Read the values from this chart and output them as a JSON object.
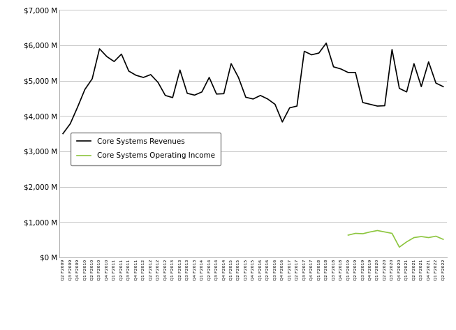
{
  "title": "",
  "xlabel": "",
  "ylabel": "",
  "ylim": [
    0,
    7000
  ],
  "yticks": [
    0,
    1000,
    2000,
    3000,
    4000,
    5000,
    6000,
    7000
  ],
  "ytick_labels": [
    "$0 M",
    "$1,000 M",
    "$2,000 M",
    "$3,000 M",
    "$4,000 M",
    "$5,000 M",
    "$6,000 M",
    "$7,000 M"
  ],
  "x_labels": [
    "Q2 F2009",
    "Q3 F2009",
    "Q4 F2009",
    "Q1 F2010",
    "Q2 F2010",
    "Q3 F2010",
    "Q4 F2010",
    "Q1 F2011",
    "Q2 F2011",
    "Q3 F2011",
    "Q4 F2011",
    "Q1 F2012",
    "Q2 F2012",
    "Q3 F2012",
    "Q4 F2012",
    "Q1 F2013",
    "Q2 F2013",
    "Q3 F2013",
    "Q4 F2013",
    "Q1 F2014",
    "Q2 F2014",
    "Q3 F2014",
    "Q4 F2014",
    "Q1 F2015",
    "Q2 F2015",
    "Q3 F2015",
    "Q4 F2015",
    "Q1 F2016",
    "Q2 F2016",
    "Q3 F2016",
    "Q4 F2016",
    "Q1 F2017",
    "Q2 F2017",
    "Q3 F2017",
    "Q4 F2017",
    "Q1 F2018",
    "Q2 F2018",
    "Q3 F2018",
    "Q4 F2018",
    "Q1 F2019",
    "Q2 F2019",
    "Q3 F2019",
    "Q4 F2019",
    "Q1 F2020",
    "Q2 F2020",
    "Q3 F2020",
    "Q4 F2020",
    "Q1 F2021",
    "Q2 F2021",
    "Q3 F2021",
    "Q4 F2021",
    "Q1 F2022",
    "Q2 F2022"
  ],
  "revenues": [
    3500,
    3780,
    4250,
    4750,
    5050,
    5900,
    5680,
    5540,
    5750,
    5270,
    5150,
    5090,
    5170,
    4950,
    4580,
    4520,
    5300,
    4640,
    4590,
    4680,
    5090,
    4620,
    4630,
    5480,
    5090,
    4530,
    4480,
    4580,
    4480,
    4330,
    3830,
    4230,
    4280,
    5830,
    5730,
    5780,
    6060,
    5390,
    5330,
    5230,
    5230,
    4380,
    4330,
    4280,
    4290,
    5880,
    4780,
    4680,
    5480,
    4830,
    5530,
    4930,
    4830
  ],
  "operating_income": [
    null,
    null,
    null,
    null,
    null,
    null,
    null,
    null,
    null,
    null,
    null,
    null,
    null,
    null,
    null,
    null,
    null,
    null,
    null,
    null,
    null,
    null,
    null,
    null,
    null,
    null,
    null,
    null,
    null,
    null,
    null,
    null,
    null,
    null,
    null,
    null,
    null,
    null,
    null,
    630,
    680,
    670,
    720,
    760,
    720,
    680,
    290,
    440,
    560,
    590,
    560,
    600,
    510
  ],
  "revenue_color": "#000000",
  "operating_income_color": "#8dc63f",
  "background_color": "#ffffff",
  "grid_color": "#bbbbbb",
  "legend_revenue": "Core Systems Revenues",
  "legend_op_income": "Core Systems Operating Income"
}
